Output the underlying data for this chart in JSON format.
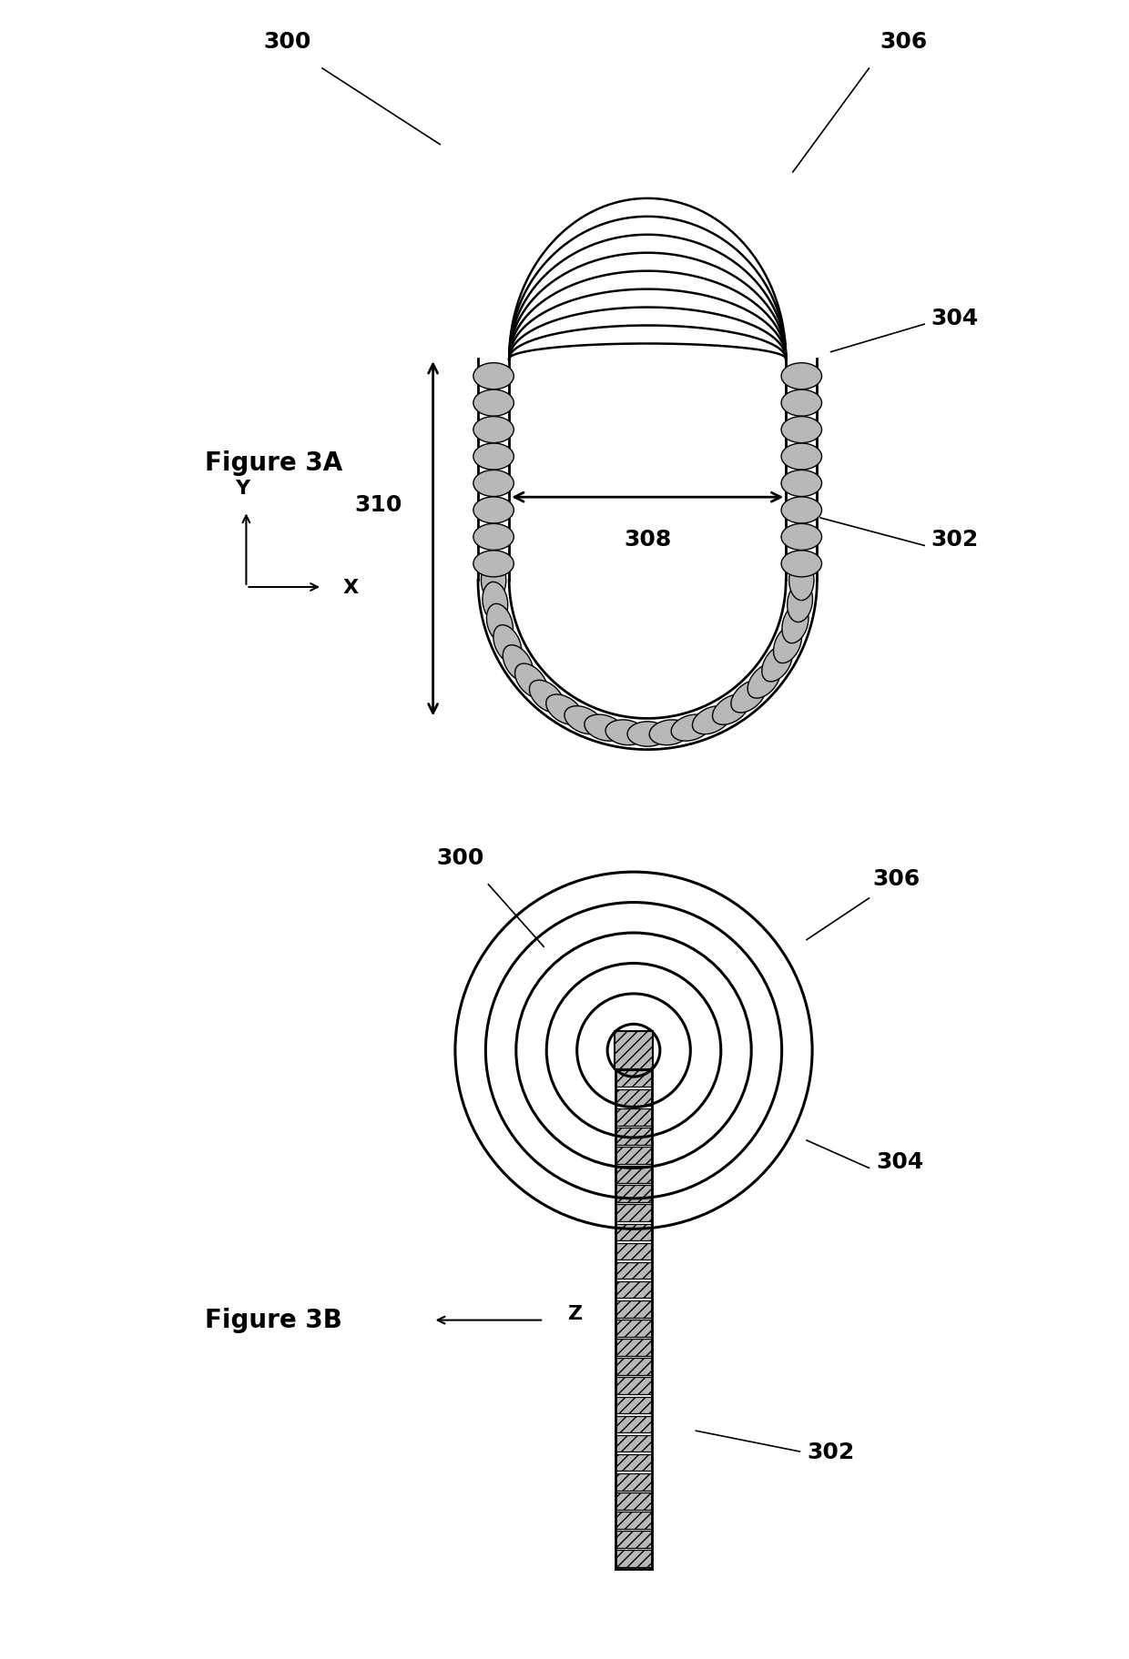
{
  "fig3a_label": "Figure 3A",
  "fig3b_label": "Figure 3B",
  "label_300": "300",
  "label_302": "302",
  "label_304": "304",
  "label_306": "306",
  "label_308": "308",
  "label_310": "310",
  "label_z": "Z",
  "label_y": "Y",
  "label_x": "X",
  "bg_color": "#ffffff",
  "line_color": "#000000",
  "hatch_color": "#b0b0b0",
  "text_fontsize": 18,
  "label_fontsize": 16,
  "title_fontsize": 20,
  "coil_lw": 2.0,
  "arc_lw": 1.8
}
